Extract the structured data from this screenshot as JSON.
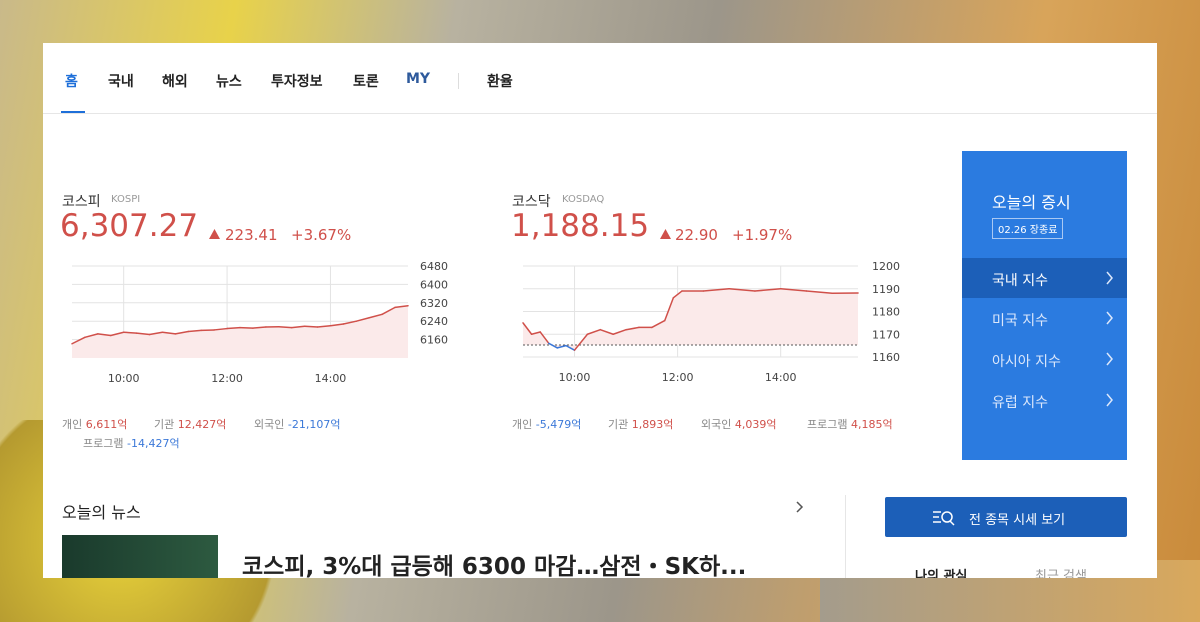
{
  "nav": {
    "tabs": [
      "홈",
      "국내",
      "해외",
      "뉴스",
      "투자정보",
      "토론",
      "MY"
    ],
    "extra": "환율"
  },
  "markets": [
    {
      "name": "코스피",
      "code": "KOSPI",
      "price": "6,307.27",
      "change": "223.41",
      "change_pct": "+3.67%",
      "chart": {
        "type": "line",
        "color": "#d0504a",
        "fill": "#fbeaea",
        "x": [
          "09:00",
          "09:15",
          "09:30",
          "09:45",
          "10:00",
          "10:15",
          "10:30",
          "10:45",
          "11:00",
          "11:15",
          "11:30",
          "11:45",
          "12:00",
          "12:15",
          "12:30",
          "12:45",
          "13:00",
          "13:15",
          "13:30",
          "13:45",
          "14:00",
          "14:15",
          "14:30",
          "14:45",
          "15:00",
          "15:15",
          "15:30"
        ],
        "values": [
          6142,
          6170,
          6185,
          6178,
          6192,
          6188,
          6182,
          6192,
          6185,
          6195,
          6200,
          6202,
          6208,
          6212,
          6210,
          6215,
          6216,
          6212,
          6218,
          6215,
          6220,
          6228,
          6240,
          6255,
          6270,
          6300,
          6307.27
        ],
        "xlim": [
          "09:00",
          "15:30"
        ],
        "ylim": [
          6080,
          6480
        ],
        "yticks": [
          6160,
          6240,
          6320,
          6400,
          6480
        ],
        "xticks": [
          "10:00",
          "12:00",
          "14:00"
        ]
      },
      "investors": [
        {
          "label": "개인",
          "value": "6,611억"
        },
        {
          "label": "기관",
          "value": "12,427억"
        },
        {
          "label": "외국인",
          "value": "-21,107억"
        },
        {
          "label": "프로그램",
          "value": "-14,427억"
        }
      ]
    },
    {
      "name": "코스닥",
      "code": "KOSDAQ",
      "price": "1,188.15",
      "change": "22.90",
      "change_pct": "+1.97%",
      "chart": {
        "type": "line",
        "color": "#d0504a",
        "below_color": "#3b78d8",
        "fill": "#fbeaea",
        "baseline": 1165.25,
        "x": [
          "09:00",
          "09:10",
          "09:20",
          "09:30",
          "09:40",
          "09:50",
          "10:00",
          "10:15",
          "10:30",
          "10:45",
          "11:00",
          "11:15",
          "11:30",
          "11:45",
          "11:55",
          "12:05",
          "12:30",
          "13:00",
          "13:30",
          "14:00",
          "14:30",
          "15:00",
          "15:30"
        ],
        "values": [
          1175,
          1170,
          1171,
          1166,
          1164,
          1165,
          1163,
          1170,
          1172,
          1170,
          1172,
          1173,
          1173,
          1176,
          1186,
          1189,
          1189,
          1190,
          1189,
          1190,
          1189,
          1188,
          1188.15
        ],
        "xlim": [
          "09:00",
          "15:30"
        ],
        "ylim": [
          1160,
          1200
        ],
        "yticks": [
          1160,
          1170,
          1180,
          1190,
          1200
        ],
        "xticks": [
          "10:00",
          "12:00",
          "14:00"
        ]
      },
      "investors": [
        {
          "label": "개인",
          "value": "-5,479억"
        },
        {
          "label": "기관",
          "value": "1,893억"
        },
        {
          "label": "외국인",
          "value": "4,039억"
        },
        {
          "label": "프로그램",
          "value": "4,185억"
        }
      ]
    }
  ],
  "today": {
    "title": "오늘의 증시",
    "badge": "02.26 장종료",
    "menu": [
      "국내 지수",
      "미국 지수",
      "아시아 지수",
      "유럽 지수"
    ]
  },
  "news": {
    "title": "오늘의 뉴스",
    "headline": "코스피, 3%대 급등해 6300 마감…삼전・SK하..."
  },
  "button": "전 종목 시세 보기",
  "side_tabs": [
    "나의 관심",
    "최근 검색"
  ]
}
